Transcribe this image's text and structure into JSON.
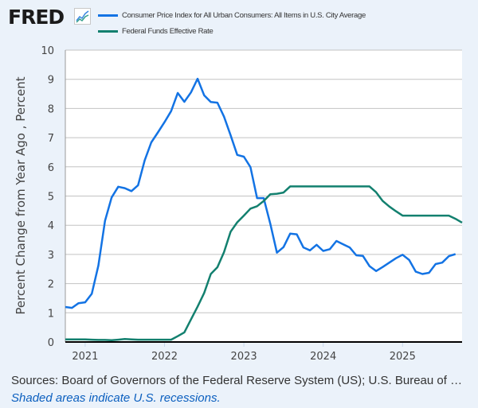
{
  "header": {
    "logo_text": "FRED",
    "logo_icon": "trend-chart-icon"
  },
  "colors": {
    "background": "#ebf2fa",
    "cpi": "#1373e4",
    "fedfunds": "#13806f",
    "grid": "#c3c3c3"
  },
  "chart_data": {
    "type": "line",
    "title": "",
    "xlabel": "",
    "ylabel": "Percent Change from Year Ago , Percent",
    "ylim": [
      0,
      10
    ],
    "yticks": [
      "0",
      "1",
      "2",
      "3",
      "4",
      "5",
      "6",
      "7",
      "8",
      "9",
      "10"
    ],
    "xlim": [
      "2020-10",
      "2025-10"
    ],
    "xticks": [
      "2021",
      "2022",
      "2023",
      "2024",
      "2025"
    ],
    "grid": true,
    "legend_position": "top",
    "x": [
      "2020-10",
      "2020-11",
      "2020-12",
      "2021-01",
      "2021-02",
      "2021-03",
      "2021-04",
      "2021-05",
      "2021-06",
      "2021-07",
      "2021-08",
      "2021-09",
      "2021-10",
      "2021-11",
      "2021-12",
      "2022-01",
      "2022-02",
      "2022-03",
      "2022-04",
      "2022-05",
      "2022-06",
      "2022-07",
      "2022-08",
      "2022-09",
      "2022-10",
      "2022-11",
      "2022-12",
      "2023-01",
      "2023-02",
      "2023-03",
      "2023-04",
      "2023-05",
      "2023-06",
      "2023-07",
      "2023-08",
      "2023-09",
      "2023-10",
      "2023-11",
      "2023-12",
      "2024-01",
      "2024-02",
      "2024-03",
      "2024-04",
      "2024-05",
      "2024-06",
      "2024-07",
      "2024-08",
      "2024-09",
      "2024-10",
      "2024-11",
      "2024-12",
      "2025-01",
      "2025-02",
      "2025-03",
      "2025-04",
      "2025-05",
      "2025-06",
      "2025-07",
      "2025-08",
      "2025-09",
      "2025-10"
    ],
    "series": [
      {
        "name": "Consumer Price Index for All Urban Consumers: All Items in U.S. City Average",
        "color": "#1373e4",
        "values": [
          1.2,
          1.17,
          1.33,
          1.36,
          1.65,
          2.62,
          4.15,
          4.95,
          5.32,
          5.27,
          5.17,
          5.37,
          6.22,
          6.84,
          7.18,
          7.53,
          7.91,
          8.53,
          8.23,
          8.55,
          9.02,
          8.45,
          8.22,
          8.2,
          7.72,
          7.08,
          6.41,
          6.35,
          5.99,
          4.93,
          4.93,
          4.05,
          3.06,
          3.25,
          3.71,
          3.69,
          3.24,
          3.14,
          3.33,
          3.12,
          3.18,
          3.46,
          3.35,
          3.24,
          2.97,
          2.95,
          2.6,
          2.43,
          2.57,
          2.72,
          2.87,
          2.99,
          2.81,
          2.41,
          2.33,
          2.37,
          2.67,
          2.72,
          2.94,
          3.01,
          null
        ]
      },
      {
        "name": "Federal Funds Effective Rate",
        "color": "#13806f",
        "values": [
          0.09,
          0.09,
          0.09,
          0.09,
          0.08,
          0.07,
          0.07,
          0.06,
          0.08,
          0.1,
          0.09,
          0.08,
          0.08,
          0.08,
          0.08,
          0.08,
          0.08,
          0.2,
          0.33,
          0.77,
          1.21,
          1.68,
          2.33,
          2.56,
          3.08,
          3.78,
          4.1,
          4.33,
          4.57,
          4.65,
          4.83,
          5.06,
          5.08,
          5.12,
          5.33,
          5.33,
          5.33,
          5.33,
          5.33,
          5.33,
          5.33,
          5.33,
          5.33,
          5.33,
          5.33,
          5.33,
          5.33,
          5.13,
          4.83,
          4.64,
          4.48,
          4.33,
          4.33,
          4.33,
          4.33,
          4.33,
          4.33,
          4.33,
          4.33,
          4.22,
          4.09
        ]
      }
    ]
  },
  "footer": {
    "sources": "Sources: Board of Governors of the Federal Reserve System (US); U.S. Bureau of Labor Statistics",
    "recession_note": "Shaded areas indicate U.S. recessions."
  }
}
